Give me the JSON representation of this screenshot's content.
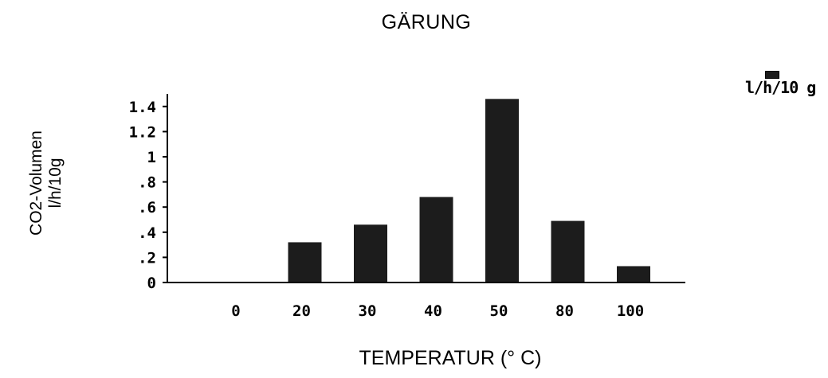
{
  "chart_data": {
    "type": "bar",
    "title": "GÄRUNG",
    "xlabel": "TEMPERATUR (° C)",
    "ylabel": [
      "CO2-Volumen",
      "l/h/10g"
    ],
    "categories": [
      "0",
      "20",
      "30",
      "40",
      "50",
      "80",
      "100"
    ],
    "series": [
      {
        "name": "l/h/10 g",
        "values": [
          0,
          0.32,
          0.46,
          0.68,
          1.46,
          0.49,
          0.13
        ]
      }
    ],
    "ylim": [
      0,
      1.5
    ],
    "yticks": [
      0,
      0.2,
      0.4,
      0.6,
      0.8,
      1,
      1.2,
      1.4
    ],
    "ytick_labels": [
      "0",
      ".2",
      ".4",
      ".6",
      ".8",
      "1",
      "1.2",
      "1.4"
    ],
    "grid": false,
    "legend_position": "top-right",
    "colors": {
      "bar": "#1c1c1c",
      "axis": "#000000"
    }
  }
}
